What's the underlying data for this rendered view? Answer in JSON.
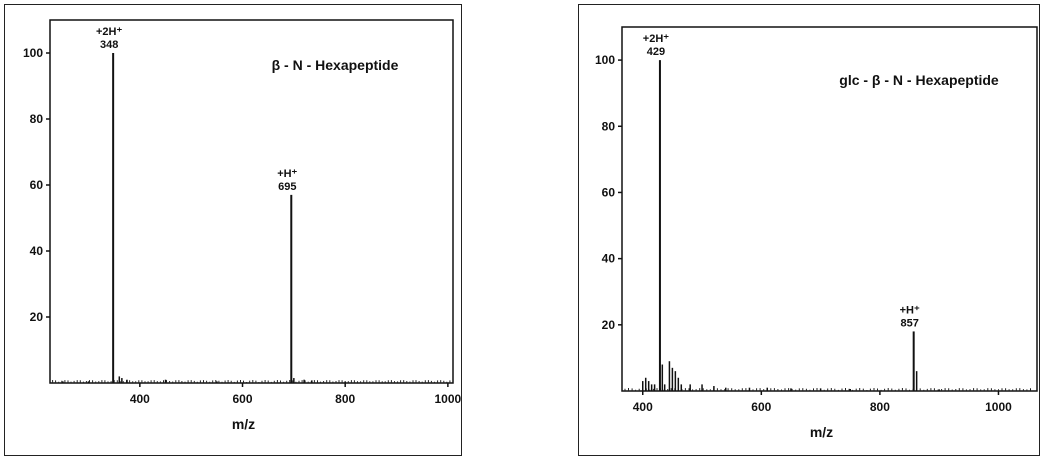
{
  "chart_data": [
    {
      "type": "bar",
      "title": "β - N - Hexapeptide",
      "xlabel": "m/z",
      "ylabel": "",
      "xlim": [
        225,
        1010
      ],
      "ylim": [
        0,
        110
      ],
      "xticks": [
        400,
        600,
        800,
        1000
      ],
      "yticks": [
        20,
        40,
        60,
        80,
        100
      ],
      "peaks": [
        {
          "mz": 348,
          "intensity": 100
        },
        {
          "mz": 695,
          "intensity": 57
        },
        {
          "mz": 360,
          "intensity": 2
        },
        {
          "mz": 365,
          "intensity": 1.5
        },
        {
          "mz": 375,
          "intensity": 1
        },
        {
          "mz": 450,
          "intensity": 1
        },
        {
          "mz": 700,
          "intensity": 1.5
        },
        {
          "mz": 720,
          "intensity": 1
        },
        {
          "mz": 735,
          "intensity": 0.8
        },
        {
          "mz": 250,
          "intensity": 0.5
        },
        {
          "mz": 300,
          "intensity": 0.5
        },
        {
          "mz": 550,
          "intensity": 0.5
        },
        {
          "mz": 800,
          "intensity": 0.5
        }
      ],
      "annotations": [
        {
          "mz": 348,
          "intensity": 100,
          "ion": "+2H⁺",
          "value": "348"
        },
        {
          "mz": 695,
          "intensity": 57,
          "ion": "+H⁺",
          "value": "695"
        }
      ]
    },
    {
      "type": "bar",
      "title": "glc - β - N - Hexapeptide",
      "xlabel": "m/z",
      "ylabel": "",
      "xlim": [
        365,
        1065
      ],
      "ylim": [
        0,
        110
      ],
      "xticks": [
        400,
        600,
        800,
        1000
      ],
      "yticks": [
        20,
        40,
        60,
        80,
        100
      ],
      "peaks": [
        {
          "mz": 429,
          "intensity": 100
        },
        {
          "mz": 857,
          "intensity": 18
        },
        {
          "mz": 400,
          "intensity": 3
        },
        {
          "mz": 405,
          "intensity": 4
        },
        {
          "mz": 410,
          "intensity": 3
        },
        {
          "mz": 415,
          "intensity": 2
        },
        {
          "mz": 420,
          "intensity": 2
        },
        {
          "mz": 433,
          "intensity": 8
        },
        {
          "mz": 437,
          "intensity": 2
        },
        {
          "mz": 445,
          "intensity": 9
        },
        {
          "mz": 450,
          "intensity": 7
        },
        {
          "mz": 455,
          "intensity": 6
        },
        {
          "mz": 460,
          "intensity": 4
        },
        {
          "mz": 465,
          "intensity": 2
        },
        {
          "mz": 480,
          "intensity": 2
        },
        {
          "mz": 500,
          "intensity": 2
        },
        {
          "mz": 520,
          "intensity": 1.5
        },
        {
          "mz": 540,
          "intensity": 1
        },
        {
          "mz": 580,
          "intensity": 1
        },
        {
          "mz": 610,
          "intensity": 1
        },
        {
          "mz": 650,
          "intensity": 0.8
        },
        {
          "mz": 700,
          "intensity": 0.8
        },
        {
          "mz": 750,
          "intensity": 0.6
        },
        {
          "mz": 862,
          "intensity": 6
        },
        {
          "mz": 900,
          "intensity": 0.5
        }
      ],
      "annotations": [
        {
          "mz": 429,
          "intensity": 100,
          "ion": "+2H⁺",
          "value": "429"
        },
        {
          "mz": 857,
          "intensity": 18,
          "ion": "+H⁺",
          "value": "857"
        }
      ]
    }
  ]
}
